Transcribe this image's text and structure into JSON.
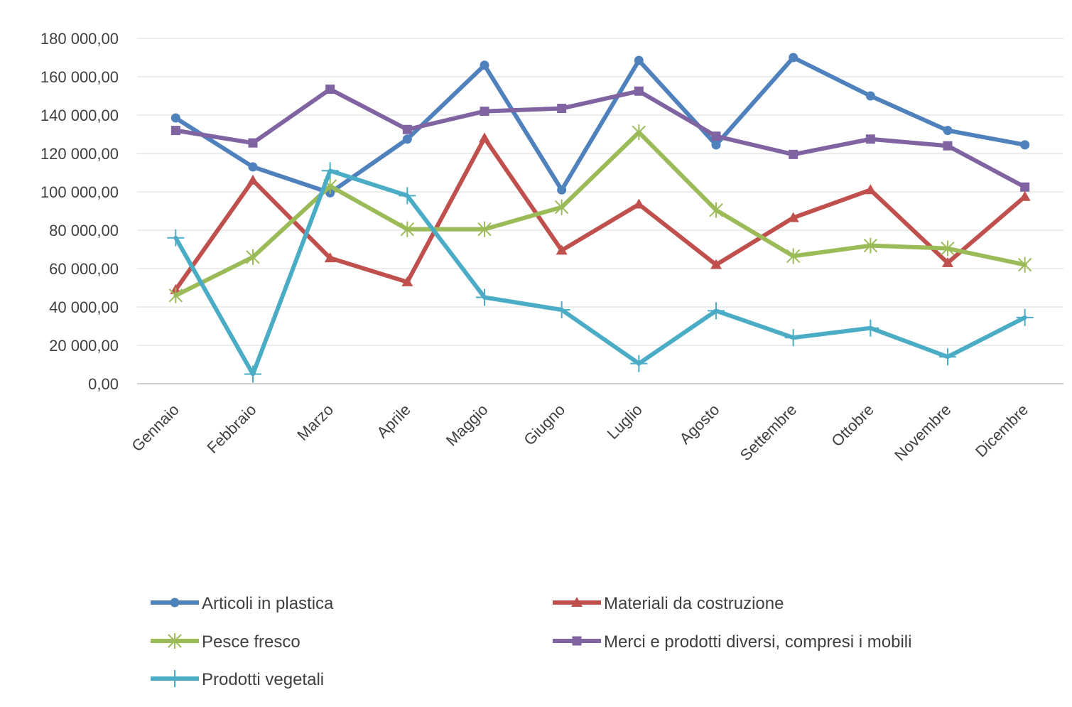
{
  "chart_data": {
    "type": "line",
    "categories": [
      "Gennaio",
      "Febbraio",
      "Marzo",
      "Aprile",
      "Maggio",
      "Giugno",
      "Luglio",
      "Agosto",
      "Settembre",
      "Ottobre",
      "Novembre",
      "Dicembre"
    ],
    "ylim": [
      0,
      180000
    ],
    "ytick_values": [
      0,
      20000,
      40000,
      60000,
      80000,
      100000,
      120000,
      140000,
      160000,
      180000
    ],
    "ytick_labels": [
      "0,00",
      "20 000,00",
      "40 000,00",
      "60 000,00",
      "80 000,00",
      "100 000,00",
      "120 000,00",
      "140 000,00",
      "160 000,00",
      "180 000,00"
    ],
    "grid": true,
    "legend_position": "bottom",
    "series": [
      {
        "name": "Articoli in plastica",
        "color": "#4F81BD",
        "marker": "circle",
        "values": [
          138500,
          113000,
          99500,
          127500,
          166000,
          101000,
          168500,
          124500,
          170000,
          150000,
          132000,
          124500
        ]
      },
      {
        "name": "Materiali da costruzione",
        "color": "#C0504D",
        "marker": "triangle",
        "values": [
          49000,
          106000,
          65500,
          53000,
          128000,
          69500,
          93500,
          62000,
          86500,
          101000,
          63000,
          97500
        ]
      },
      {
        "name": "Pesce fresco",
        "color": "#9BBB59",
        "marker": "star",
        "values": [
          46000,
          66000,
          103000,
          80500,
          80500,
          92000,
          131000,
          90500,
          66500,
          72000,
          70500,
          62000
        ]
      },
      {
        "name": "Merci e prodotti diversi, compresi i mobili",
        "color": "#8064A2",
        "marker": "square",
        "values": [
          132000,
          125500,
          153500,
          132500,
          142000,
          143500,
          152500,
          129000,
          119500,
          127500,
          124000,
          102500
        ]
      },
      {
        "name": "Prodotti vegetali",
        "color": "#4BACC6",
        "marker": "plus",
        "values": [
          76000,
          5000,
          111000,
          98000,
          45000,
          38500,
          10500,
          38000,
          24000,
          29000,
          14000,
          34500
        ]
      }
    ]
  }
}
